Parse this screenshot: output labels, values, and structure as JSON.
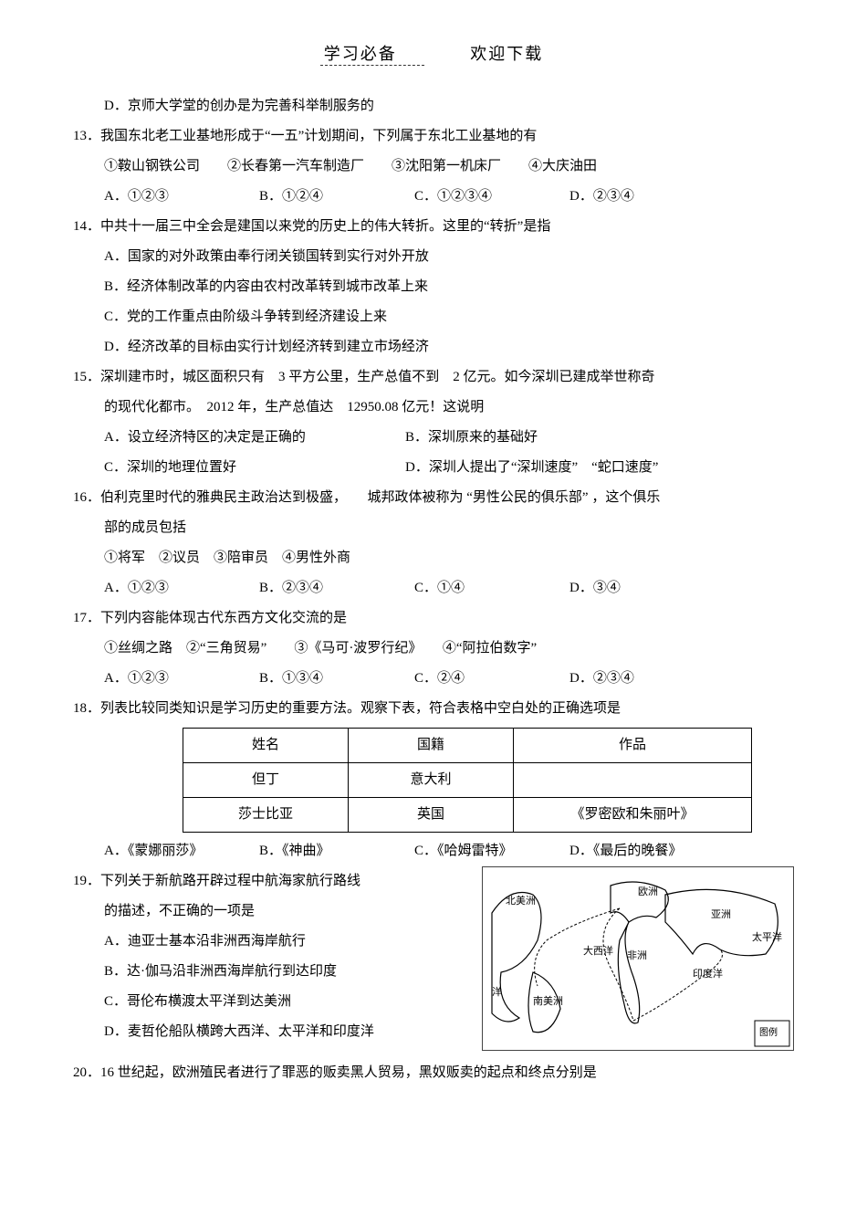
{
  "header": {
    "left": "学习必备",
    "right": "欢迎下载"
  },
  "q12d": "D．京师大学堂的创办是为完善科举制服务的",
  "q13": {
    "stem": "13．我国东北老工业基地形成于“一五”计划期间，下列属于东北工业基地的有",
    "items": "①鞍山钢铁公司　　②长春第一汽车制造厂　　③沈阳第一机床厂　　④大庆油田",
    "A": "A．①②③",
    "B": "B．①②④",
    "C": "C．①②③④",
    "D": "D．②③④"
  },
  "q14": {
    "stem": "14．中共十一届三中全会是建国以来党的历史上的伟大转折。这里的“转折”是指",
    "A": "A．国家的对外政策由奉行闭关锁国转到实行对外开放",
    "B": "B．经济体制改革的内容由农村改革转到城市改革上来",
    "C": "C．党的工作重点由阶级斗争转到经济建设上来",
    "D": "D．经济改革的目标由实行计划经济转到建立市场经济"
  },
  "q15": {
    "stem1": "15．深圳建市时，城区面积只有　3 平方公里，生产总值不到　2 亿元。如今深圳已建成举世称奇",
    "stem2": "的现代化都市。　2012 年，生产总值达　12950.08 亿元！这说明",
    "A": "A．设立经济特区的决定是正确的",
    "B": "B．深圳原来的基础好",
    "C": "C．深圳的地理位置好",
    "D": "D．深圳人提出了“深圳速度”　“蛇口速度”"
  },
  "q16": {
    "stem1": "16．伯利克里时代的雅典民主政治达到极盛，　　城邦政体被称为 “男性公民的俱乐部” ，这个俱乐",
    "stem2": "部的成员包括",
    "items": "①将军　②议员　③陪审员　④男性外商",
    "A": "A．①②③",
    "B": "B．②③④",
    "C": "C．①④",
    "D": "D．③④"
  },
  "q17": {
    "stem": "17．下列内容能体现古代东西方文化交流的是",
    "items": "①丝绸之路　②“三角贸易”　　③《马可·波罗行纪》　　④“阿拉伯数字”",
    "A": "A．①②③",
    "B": "B．①③④",
    "C": "C．②④",
    "D": "D．②③④"
  },
  "q18": {
    "stem": "18．列表比较同类知识是学习历史的重要方法。观察下表，符合表格中空白处的正确选项是",
    "table": {
      "headers": [
        "姓名",
        "国籍",
        "作品"
      ],
      "rows": [
        [
          "但丁",
          "意大利",
          ""
        ],
        [
          "莎士比亚",
          "英国",
          "《罗密欧和朱丽叶》"
        ]
      ],
      "col_widths": [
        "140px",
        "140px",
        "220px"
      ]
    },
    "A": "A．《蒙娜丽莎》",
    "B": "B．《神曲》",
    "C": "C．《哈姆雷特》",
    "D": "D．《最后的晚餐》"
  },
  "q19": {
    "stem1": "19．下列关于新航路开辟过程中航海家航行路线",
    "stem2": "的描述，不正确的一项是",
    "A": "A．迪亚士基本沿非洲西海岸航行",
    "B": "B．达·伽马沿非洲西海岸航行到达印度",
    "C": "C．哥伦布横渡太平洋到达美洲",
    "D": "D．麦哲伦船队横跨大西洋、太平洋和印度洋",
    "map_labels": {
      "north_america": "北美洲",
      "europe": "欧洲",
      "asia": "亚洲",
      "africa": "非洲",
      "south_america": "南美洲",
      "pacific": "太平洋",
      "indian": "印度洋",
      "atlantic": "大西洋",
      "legend": "图例"
    }
  },
  "q20": {
    "stem": "20．16 世纪起，欧洲殖民者进行了罪恶的贩卖黑人贸易，黑奴贩卖的起点和终点分别是"
  },
  "style": {
    "opt4_widths": [
      "170px",
      "170px",
      "170px",
      "170px"
    ],
    "opt2_widths": [
      "330px",
      "330px"
    ]
  }
}
